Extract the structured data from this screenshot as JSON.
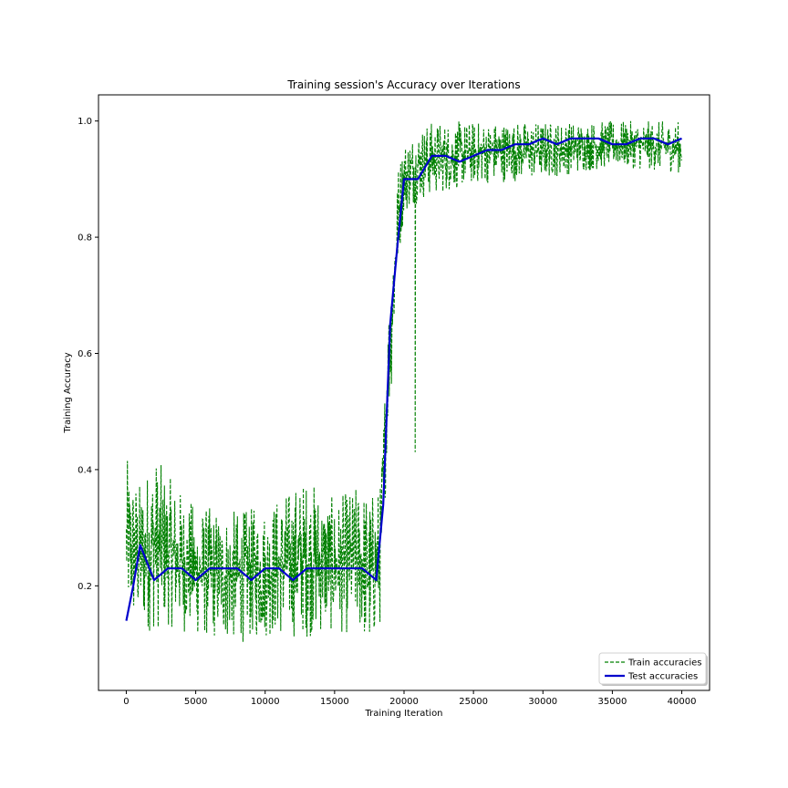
{
  "chart_data": {
    "type": "line",
    "title": "Training session's Accuracy over Iterations",
    "xlabel": "Training Iteration",
    "ylabel": "Training Accuracy",
    "xlim": [
      -2000,
      42000
    ],
    "ylim": [
      0.02,
      1.045
    ],
    "xticks": [
      0,
      5000,
      10000,
      15000,
      20000,
      25000,
      30000,
      35000,
      40000
    ],
    "xtick_labels": [
      "0",
      "5000",
      "10000",
      "15000",
      "20000",
      "25000",
      "30000",
      "35000",
      "40000"
    ],
    "yticks": [
      0.2,
      0.4,
      0.6,
      0.8,
      1.0
    ],
    "ytick_labels": [
      "0.2",
      "0.4",
      "0.6",
      "0.8",
      "1.0"
    ],
    "grid": false,
    "legend_position": "lower-right",
    "series": [
      {
        "name": "Train accuracies",
        "color": "#008000",
        "style": "dashed",
        "envelope": [
          {
            "x": 0,
            "low": 0.13,
            "high": 0.42
          },
          {
            "x": 500,
            "low": 0.12,
            "high": 0.4
          },
          {
            "x": 1000,
            "low": 0.12,
            "high": 0.38
          },
          {
            "x": 2000,
            "low": 0.12,
            "high": 0.43
          },
          {
            "x": 3000,
            "low": 0.13,
            "high": 0.39
          },
          {
            "x": 5000,
            "low": 0.11,
            "high": 0.34
          },
          {
            "x": 8000,
            "low": 0.1,
            "high": 0.33
          },
          {
            "x": 10000,
            "low": 0.11,
            "high": 0.34
          },
          {
            "x": 13000,
            "low": 0.11,
            "high": 0.39
          },
          {
            "x": 15000,
            "low": 0.12,
            "high": 0.35
          },
          {
            "x": 17000,
            "low": 0.11,
            "high": 0.38
          },
          {
            "x": 17500,
            "low": 0.07,
            "high": 0.36
          },
          {
            "x": 18300,
            "low": 0.13,
            "high": 0.38
          },
          {
            "x": 18800,
            "low": 0.45,
            "high": 0.65
          },
          {
            "x": 19200,
            "low": 0.57,
            "high": 0.83
          },
          {
            "x": 19600,
            "low": 0.75,
            "high": 0.93
          },
          {
            "x": 20000,
            "low": 0.84,
            "high": 0.97
          },
          {
            "x": 21000,
            "low": 0.86,
            "high": 0.99
          },
          {
            "x": 22000,
            "low": 0.87,
            "high": 1.0
          },
          {
            "x": 25000,
            "low": 0.89,
            "high": 1.0
          },
          {
            "x": 30000,
            "low": 0.9,
            "high": 1.0
          },
          {
            "x": 35000,
            "low": 0.92,
            "high": 1.0
          },
          {
            "x": 40000,
            "low": 0.91,
            "high": 1.0
          }
        ],
        "spike": {
          "x": 20800,
          "y": 0.43
        }
      },
      {
        "name": "Test accuracies",
        "color": "#0000cc",
        "style": "solid",
        "x": [
          0,
          500,
          1000,
          2000,
          3000,
          4000,
          5000,
          6000,
          7000,
          8000,
          9000,
          10000,
          11000,
          12000,
          13000,
          14000,
          15000,
          16000,
          17000,
          18000,
          18500,
          19000,
          19500,
          20000,
          21000,
          22000,
          23000,
          24000,
          25000,
          26000,
          27000,
          28000,
          29000,
          30000,
          31000,
          32000,
          33000,
          34000,
          35000,
          36000,
          37000,
          38000,
          39000,
          40000
        ],
        "y": [
          0.14,
          0.2,
          0.27,
          0.21,
          0.23,
          0.23,
          0.21,
          0.23,
          0.23,
          0.23,
          0.21,
          0.23,
          0.23,
          0.21,
          0.23,
          0.23,
          0.23,
          0.23,
          0.23,
          0.21,
          0.34,
          0.65,
          0.78,
          0.9,
          0.9,
          0.94,
          0.94,
          0.93,
          0.94,
          0.95,
          0.95,
          0.96,
          0.96,
          0.97,
          0.96,
          0.97,
          0.97,
          0.97,
          0.96,
          0.96,
          0.97,
          0.97,
          0.96,
          0.97
        ]
      }
    ]
  }
}
